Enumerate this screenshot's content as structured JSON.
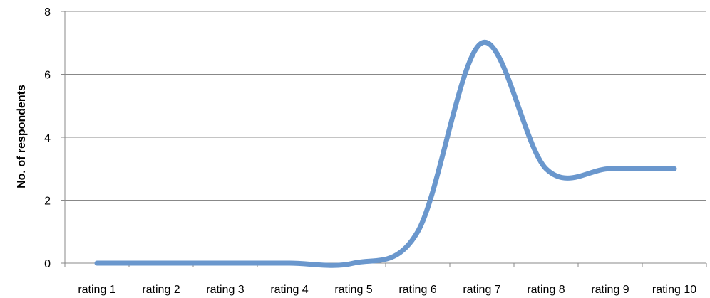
{
  "chart_data": {
    "type": "line",
    "categories": [
      "rating 1",
      "rating 2",
      "rating 3",
      "rating 4",
      "rating 5",
      "rating 6",
      "rating 7",
      "rating 8",
      "rating 9",
      "rating 10"
    ],
    "series": [
      {
        "values": [
          0,
          0,
          0,
          0,
          0,
          1,
          7,
          3,
          3,
          3
        ]
      }
    ],
    "title": "",
    "xlabel": "",
    "ylabel": "No. of respondents",
    "ylim": [
      0,
      8
    ],
    "yticks": [
      "0",
      "2",
      "4",
      "6",
      "8"
    ],
    "grid": "horizontal",
    "smooth": true,
    "line_color": "#6a97cd",
    "grid_color": "#888888"
  }
}
